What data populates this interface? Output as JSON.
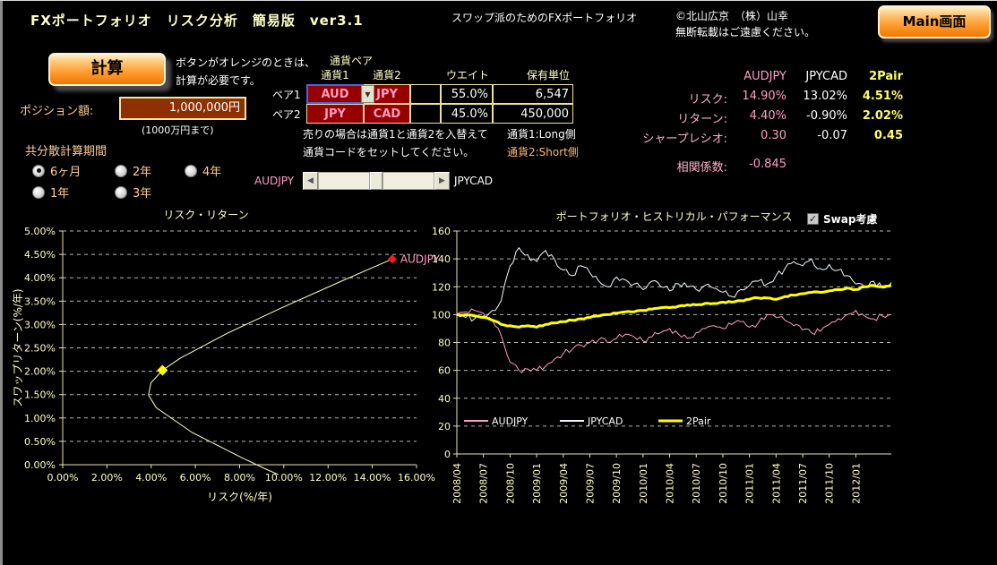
{
  "header": {
    "title": "FXポートフォリオ　リスク分析　簡易版　ver3.1",
    "subtitle": "スワップ派のためのFXポートフォリオ",
    "copyright_line1": "©北山広京　（株）山幸",
    "copyright_line2": "無断転載はご遠慮ください。",
    "main_button": "Main画面"
  },
  "calc": {
    "button": "計算",
    "note_line1": "ボタンがオレンジのときは、",
    "note_line2": "計算が必要です。"
  },
  "position": {
    "label": "ポジション額:",
    "value": "1,000,000円",
    "hint": "(1000万円まで)"
  },
  "covariance": {
    "label": "共分散計算期間",
    "options": [
      {
        "label": "6ヶ月",
        "selected": true
      },
      {
        "label": "2年",
        "selected": false
      },
      {
        "label": "4年",
        "selected": false
      },
      {
        "label": "1年",
        "selected": false
      },
      {
        "label": "3年",
        "selected": false
      }
    ]
  },
  "pair_table": {
    "title": "通貨ペア",
    "headers": {
      "c1": "通貨1",
      "c2": "通貨2",
      "weight": "ウエイト",
      "units": "保有単位"
    },
    "rows": [
      {
        "label": "ペア1",
        "c1": "AUD",
        "c2": "JPY",
        "weight": "55.0%",
        "units": "6,547"
      },
      {
        "label": "ペア2",
        "c1": "JPY",
        "c2": "CAD",
        "weight": "45.0%",
        "units": "450,000"
      }
    ],
    "note_line1": "売りの場合は通貨1と通貨2を入替えて",
    "note_line2": "通貨コードをセットしてください。",
    "side_note1": "通貨1:Long側",
    "side_note2": "通貨2:Short側"
  },
  "slider": {
    "left_label": "AUDJPY",
    "right_label": "JPYCAD"
  },
  "stats": {
    "columns": [
      "AUDJPY",
      "JPYCAD",
      "2Pair"
    ],
    "rows": [
      {
        "label": "リスク:",
        "values": [
          "14.90%",
          "13.02%",
          "4.51%"
        ]
      },
      {
        "label": "リターン:",
        "values": [
          "4.40%",
          "-0.90%",
          "2.02%"
        ]
      },
      {
        "label": "シャープレシオ:",
        "values": [
          "0.30",
          "-0.07",
          "0.45"
        ]
      }
    ],
    "correlation_label": "相関係数:",
    "correlation_value": "-0.845"
  },
  "performance": {
    "swap_checkbox": {
      "label": "Swap考慮",
      "checked": true
    }
  },
  "colors": {
    "background": "#000000",
    "pale_yellow": "#FFFFC8",
    "orange_label": "#FFCC99",
    "pink": "#FF9EC4",
    "white": "#FFFFFF",
    "yellow": "#FFFF00",
    "axis": "#E8E4B0",
    "grid": "#B8B8B8",
    "button_orange": "#FF9B30",
    "cell_red": "#970000"
  },
  "chart_data": [
    {
      "type": "line",
      "title": "リスク・リターン",
      "xlabel": "リスク(%/年)",
      "ylabel": "スワップリターン(%/年)",
      "xlim": [
        0,
        16
      ],
      "ylim": [
        0,
        5
      ],
      "x_tick_labels": [
        "0.00%",
        "2.00%",
        "4.00%",
        "6.00%",
        "8.00%",
        "10.00%",
        "12.00%",
        "14.00%",
        "16.00%"
      ],
      "y_tick_labels": [
        "0.00%",
        "0.50%",
        "1.00%",
        "1.50%",
        "2.00%",
        "2.50%",
        "3.00%",
        "3.50%",
        "4.00%",
        "4.50%",
        "5.00%"
      ],
      "grid": true,
      "frontier_line": {
        "color": "#FFFFC8",
        "points": [
          [
            14.9,
            4.4
          ],
          [
            12.33,
            3.87
          ],
          [
            9.82,
            3.34
          ],
          [
            7.43,
            2.81
          ],
          [
            5.32,
            2.28
          ],
          [
            4.51,
            2.02
          ],
          [
            3.99,
            1.75
          ],
          [
            3.88,
            1.49
          ],
          [
            4.23,
            1.22
          ],
          [
            5.85,
            0.69
          ],
          [
            8.06,
            0.16
          ],
          [
            9.26,
            -0.11
          ],
          [
            9.75,
            -0.21
          ]
        ]
      },
      "markers": [
        {
          "name": "AUDJPY",
          "x": 14.9,
          "y": 4.4,
          "color": "#FF1818",
          "label": "AUDJPY",
          "label_color": "#FF9EC4",
          "size": 5
        },
        {
          "name": "2Pair",
          "x": 4.51,
          "y": 2.02,
          "color": "#FFFF00",
          "label": "",
          "label_color": "",
          "size": 6
        }
      ]
    },
    {
      "type": "line",
      "title": "ポートフォリオ・ヒストリカル・パフォーマンス",
      "ylim": [
        0,
        160
      ],
      "y_ticks": [
        0,
        20,
        40,
        60,
        80,
        100,
        120,
        140,
        160
      ],
      "x_tick_labels": [
        "2008/04",
        "2008/07",
        "2008/10",
        "2009/01",
        "2009/04",
        "2009/07",
        "2009/10",
        "2010/01",
        "2010/04",
        "2010/07",
        "2010/10",
        "2011/01",
        "2011/04",
        "2011/07",
        "2011/10",
        "2012/01"
      ],
      "months_per_tick": 3,
      "grid": true,
      "legend_position": "inside-bottom",
      "series": [
        {
          "name": "AUDJPY",
          "color": "#FF9EC4",
          "width": 1,
          "noise": 2.2,
          "values": [
            100,
            102,
            103,
            101,
            96,
            85,
            66,
            60,
            61,
            60,
            63,
            68,
            72,
            75,
            78,
            80,
            82,
            80,
            83,
            86,
            84,
            81,
            84,
            87,
            90,
            86,
            83,
            87,
            90,
            92,
            90,
            93,
            95,
            91,
            94,
            100,
            98,
            96,
            92,
            89,
            87,
            88,
            93,
            97,
            100,
            103,
            99,
            97,
            99,
            100
          ]
        },
        {
          "name": "JPYCAD",
          "color": "#EFF8FF",
          "width": 1,
          "noise": 2.5,
          "values": [
            100,
            98,
            97,
            99,
            103,
            110,
            135,
            148,
            143,
            138,
            146,
            140,
            132,
            128,
            135,
            130,
            124,
            120,
            127,
            125,
            122,
            118,
            124,
            120,
            117,
            122,
            120,
            118,
            121,
            119,
            116,
            113,
            118,
            121,
            124,
            122,
            128,
            133,
            138,
            135,
            140,
            133,
            136,
            132,
            128,
            122,
            120,
            124,
            119,
            123
          ]
        },
        {
          "name": "2Pair",
          "color": "#FFFF00",
          "width": 3,
          "noise": 0.5,
          "values": [
            100,
            100,
            99,
            98,
            96,
            93,
            92,
            91,
            92,
            91,
            93,
            94,
            95,
            96,
            97,
            98,
            99,
            100,
            101,
            102,
            102,
            103,
            104,
            105,
            105,
            106,
            107,
            107,
            108,
            108,
            109,
            109,
            110,
            111,
            112,
            112,
            111,
            113,
            114,
            115,
            116,
            116,
            117,
            118,
            119,
            118,
            120,
            121,
            120,
            121
          ]
        }
      ]
    }
  ]
}
